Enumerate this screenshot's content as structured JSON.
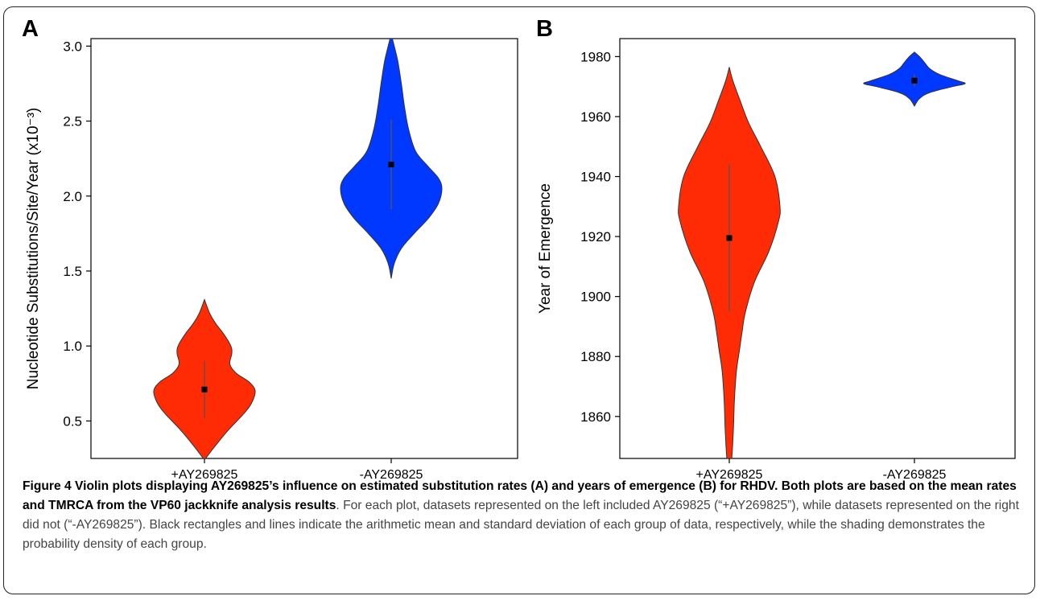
{
  "panels": {
    "a_label": "A",
    "b_label": "B"
  },
  "colors": {
    "with": "#ff2b05",
    "without": "#0038ff",
    "outline": "#333333",
    "stat": "#000000",
    "std_line": "#555555"
  },
  "chart_data": [
    {
      "type": "violin",
      "panel": "A",
      "ylabel": "Nucleotide Substitutions/Site/Year (x10⁻³)",
      "xlabel": "",
      "categories": [
        "+AY269825",
        "-AY269825"
      ],
      "ylim": [
        0.25,
        3.05
      ],
      "yticks": [
        0.5,
        1.0,
        1.5,
        2.0,
        2.5,
        3.0
      ],
      "ytick_labels": [
        "0.5",
        "1.0",
        "1.5",
        "2.0",
        "2.5",
        "3.0"
      ],
      "grid": false,
      "series": [
        {
          "category": "+AY269825",
          "mean": 0.71,
          "sd_low": 0.52,
          "sd_high": 0.9,
          "min": 0.24,
          "max": 1.31,
          "density_y": [
            0.24,
            0.35,
            0.45,
            0.55,
            0.62,
            0.7,
            0.76,
            0.82,
            0.88,
            0.95,
            1.0,
            1.08,
            1.15,
            1.22,
            1.31
          ],
          "density_w": [
            0.0,
            0.25,
            0.5,
            0.78,
            0.93,
            1.0,
            0.88,
            0.62,
            0.5,
            0.54,
            0.52,
            0.38,
            0.22,
            0.1,
            0.0
          ]
        },
        {
          "category": "-AY269825",
          "mean": 2.21,
          "sd_low": 1.91,
          "sd_high": 2.51,
          "min": 1.45,
          "max": 3.08,
          "density_y": [
            1.45,
            1.55,
            1.65,
            1.75,
            1.85,
            1.95,
            2.05,
            2.12,
            2.2,
            2.3,
            2.45,
            2.6,
            2.75,
            2.9,
            3.0,
            3.08
          ],
          "density_w": [
            0.0,
            0.06,
            0.2,
            0.45,
            0.73,
            0.93,
            1.0,
            0.93,
            0.72,
            0.48,
            0.34,
            0.26,
            0.2,
            0.13,
            0.06,
            0.0
          ]
        }
      ]
    },
    {
      "type": "violin",
      "panel": "B",
      "ylabel": "Year of Emergence",
      "xlabel": "",
      "categories": [
        "+AY269825",
        "-AY269825"
      ],
      "ylim": [
        1846,
        1986
      ],
      "yticks": [
        1860,
        1880,
        1900,
        1920,
        1940,
        1960,
        1980
      ],
      "ytick_labels": [
        "1860",
        "1880",
        "1900",
        "1920",
        "1940",
        "1960",
        "1980"
      ],
      "grid": false,
      "series": [
        {
          "category": "+AY269825",
          "mean": 1919.5,
          "sd_low": 1895,
          "sd_high": 1944,
          "min": 1846,
          "max": 1976.5,
          "density_y": [
            1846,
            1855,
            1865,
            1875,
            1882,
            1888,
            1895,
            1905,
            1915,
            1925,
            1930,
            1940,
            1950,
            1958,
            1965,
            1972,
            1976.5
          ],
          "density_w": [
            0.05,
            0.08,
            0.1,
            0.14,
            0.2,
            0.25,
            0.32,
            0.5,
            0.78,
            0.97,
            1.0,
            0.9,
            0.62,
            0.38,
            0.22,
            0.07,
            0.0
          ]
        },
        {
          "category": "-AY269825",
          "mean": 1972,
          "sd_low": 1970,
          "sd_high": 1974,
          "min": 1963.5,
          "max": 1981.5,
          "density_y": [
            1963.5,
            1966,
            1968,
            1970,
            1971,
            1972,
            1974,
            1976,
            1978,
            1980,
            1981.5
          ],
          "density_w": [
            0.0,
            0.1,
            0.3,
            0.75,
            1.0,
            0.85,
            0.5,
            0.3,
            0.2,
            0.1,
            0.0
          ]
        }
      ]
    }
  ],
  "caption": {
    "bold": "Figure 4 Violin plots displaying AY269825’s influence on estimated substitution rates (A) and years of emergence (B) for RHDV. Both plots are based on the mean rates and TMRCA from the VP60 jackknife analysis results",
    "text": ". For each plot, datasets represented on the left included AY269825 (“+AY269825”), while datasets represented on the right did not (“-AY269825”). Black rectangles and lines indicate the arithmetic mean and standard deviation of each group of data, respectively, while the shading demonstrates the probability density of each group."
  }
}
